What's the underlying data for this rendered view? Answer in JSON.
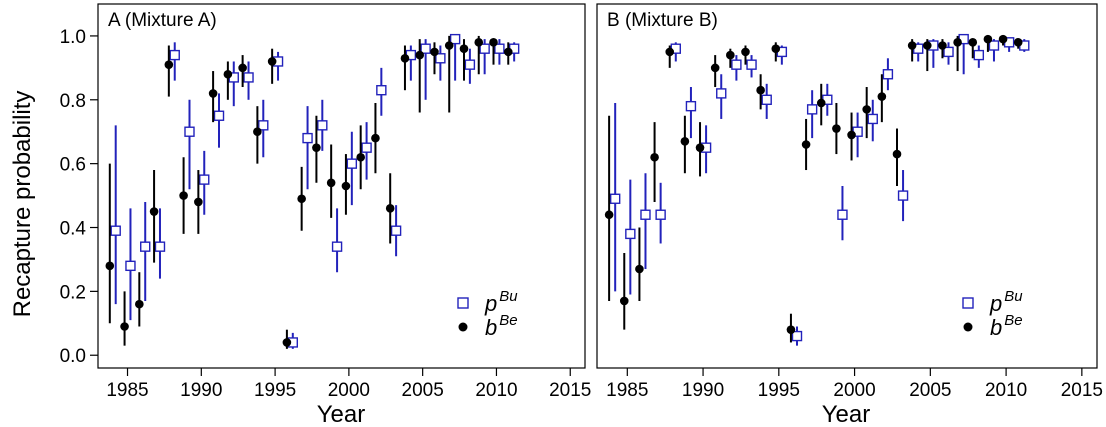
{
  "chart_data": [
    {
      "type": "scatter",
      "title": "A (Mixture A)",
      "xlabel": "Year",
      "ylabel": "Recapture probability",
      "xlim": [
        1983,
        2016
      ],
      "ylim": [
        -0.04,
        1.1
      ],
      "xticks": [
        1985,
        1990,
        1995,
        2000,
        2005,
        2010,
        2015
      ],
      "yticks": [
        "0.0",
        "0.2",
        "0.4",
        "0.6",
        "0.8",
        "1.0"
      ],
      "legend_position": "bottom-right",
      "series": [
        {
          "name": "p",
          "sup": "Bu",
          "marker": "open-square",
          "color": "#2222bb",
          "points": [
            {
              "x": 1984.2,
              "y": 0.39,
              "lo": 0.16,
              "hi": 0.72
            },
            {
              "x": 1985.2,
              "y": 0.28,
              "lo": 0.11,
              "hi": 0.46
            },
            {
              "x": 1986.2,
              "y": 0.34,
              "lo": 0.17,
              "hi": 0.48
            },
            {
              "x": 1987.2,
              "y": 0.34,
              "lo": 0.24,
              "hi": 0.46
            },
            {
              "x": 1988.2,
              "y": 0.94,
              "lo": 0.86,
              "hi": 0.98
            },
            {
              "x": 1989.2,
              "y": 0.7,
              "lo": 0.52,
              "hi": 0.8
            },
            {
              "x": 1990.2,
              "y": 0.55,
              "lo": 0.44,
              "hi": 0.64
            },
            {
              "x": 1991.2,
              "y": 0.75,
              "lo": 0.65,
              "hi": 0.82
            },
            {
              "x": 1992.2,
              "y": 0.87,
              "lo": 0.78,
              "hi": 0.92
            },
            {
              "x": 1993.2,
              "y": 0.87,
              "lo": 0.8,
              "hi": 0.92
            },
            {
              "x": 1994.2,
              "y": 0.72,
              "lo": 0.62,
              "hi": 0.8
            },
            {
              "x": 1995.2,
              "y": 0.92,
              "lo": 0.86,
              "hi": 0.95
            },
            {
              "x": 1996.2,
              "y": 0.04,
              "lo": 0.02,
              "hi": 0.07
            },
            {
              "x": 1997.2,
              "y": 0.68,
              "lo": 0.52,
              "hi": 0.78
            },
            {
              "x": 1998.2,
              "y": 0.72,
              "lo": 0.64,
              "hi": 0.8
            },
            {
              "x": 1999.2,
              "y": 0.34,
              "lo": 0.26,
              "hi": 0.46
            },
            {
              "x": 2000.2,
              "y": 0.6,
              "lo": 0.47,
              "hi": 0.7
            },
            {
              "x": 2001.2,
              "y": 0.65,
              "lo": 0.55,
              "hi": 0.73
            },
            {
              "x": 2002.2,
              "y": 0.83,
              "lo": 0.75,
              "hi": 0.9
            },
            {
              "x": 2003.2,
              "y": 0.39,
              "lo": 0.31,
              "hi": 0.47
            },
            {
              "x": 2004.2,
              "y": 0.94,
              "lo": 0.86,
              "hi": 0.97
            },
            {
              "x": 2005.2,
              "y": 0.96,
              "lo": 0.8,
              "hi": 0.99
            },
            {
              "x": 2006.2,
              "y": 0.93,
              "lo": 0.86,
              "hi": 0.97
            },
            {
              "x": 2007.2,
              "y": 0.99,
              "lo": 0.86,
              "hi": 1.0
            },
            {
              "x": 2008.2,
              "y": 0.91,
              "lo": 0.85,
              "hi": 0.96
            },
            {
              "x": 2009.2,
              "y": 0.96,
              "lo": 0.88,
              "hi": 0.99
            },
            {
              "x": 2010.2,
              "y": 0.96,
              "lo": 0.91,
              "hi": 0.99
            },
            {
              "x": 2011.2,
              "y": 0.96,
              "lo": 0.92,
              "hi": 0.98
            }
          ]
        },
        {
          "name": "b",
          "sup": "Be",
          "marker": "filled-circle",
          "color": "#000000",
          "points": [
            {
              "x": 1983.8,
              "y": 0.28,
              "lo": 0.1,
              "hi": 0.6
            },
            {
              "x": 1984.8,
              "y": 0.09,
              "lo": 0.03,
              "hi": 0.2
            },
            {
              "x": 1985.8,
              "y": 0.16,
              "lo": 0.09,
              "hi": 0.26
            },
            {
              "x": 1986.8,
              "y": 0.45,
              "lo": 0.29,
              "hi": 0.58
            },
            {
              "x": 1987.8,
              "y": 0.91,
              "lo": 0.81,
              "hi": 0.97
            },
            {
              "x": 1988.8,
              "y": 0.5,
              "lo": 0.38,
              "hi": 0.62
            },
            {
              "x": 1989.8,
              "y": 0.48,
              "lo": 0.38,
              "hi": 0.58
            },
            {
              "x": 1990.8,
              "y": 0.82,
              "lo": 0.73,
              "hi": 0.89
            },
            {
              "x": 1991.8,
              "y": 0.88,
              "lo": 0.8,
              "hi": 0.92
            },
            {
              "x": 1992.8,
              "y": 0.9,
              "lo": 0.84,
              "hi": 0.94
            },
            {
              "x": 1993.8,
              "y": 0.7,
              "lo": 0.6,
              "hi": 0.78
            },
            {
              "x": 1994.8,
              "y": 0.92,
              "lo": 0.85,
              "hi": 0.96
            },
            {
              "x": 1995.8,
              "y": 0.04,
              "lo": 0.02,
              "hi": 0.08
            },
            {
              "x": 1996.8,
              "y": 0.49,
              "lo": 0.39,
              "hi": 0.59
            },
            {
              "x": 1997.8,
              "y": 0.65,
              "lo": 0.54,
              "hi": 0.75
            },
            {
              "x": 1998.8,
              "y": 0.54,
              "lo": 0.43,
              "hi": 0.66
            },
            {
              "x": 1999.8,
              "y": 0.53,
              "lo": 0.44,
              "hi": 0.63
            },
            {
              "x": 2000.8,
              "y": 0.62,
              "lo": 0.52,
              "hi": 0.72
            },
            {
              "x": 2001.8,
              "y": 0.68,
              "lo": 0.57,
              "hi": 0.79
            },
            {
              "x": 2002.8,
              "y": 0.46,
              "lo": 0.35,
              "hi": 0.57
            },
            {
              "x": 2003.8,
              "y": 0.93,
              "lo": 0.83,
              "hi": 0.97
            },
            {
              "x": 2004.8,
              "y": 0.94,
              "lo": 0.76,
              "hi": 0.99
            },
            {
              "x": 2005.8,
              "y": 0.95,
              "lo": 0.88,
              "hi": 0.98
            },
            {
              "x": 2006.8,
              "y": 0.97,
              "lo": 0.76,
              "hi": 1.0
            },
            {
              "x": 2007.8,
              "y": 0.96,
              "lo": 0.86,
              "hi": 0.99
            },
            {
              "x": 2008.8,
              "y": 0.98,
              "lo": 0.88,
              "hi": 1.0
            },
            {
              "x": 2009.8,
              "y": 0.98,
              "lo": 0.91,
              "hi": 0.99
            },
            {
              "x": 2010.8,
              "y": 0.95,
              "lo": 0.91,
              "hi": 0.98
            }
          ]
        }
      ]
    },
    {
      "type": "scatter",
      "title": "B (Mixture B)",
      "xlabel": "Year",
      "ylabel": "",
      "xlim": [
        1983,
        2016
      ],
      "ylim": [
        -0.04,
        1.1
      ],
      "xticks": [
        1985,
        1990,
        1995,
        2000,
        2005,
        2010,
        2015
      ],
      "yticks": [],
      "legend_position": "bottom-right",
      "series": [
        {
          "name": "p",
          "sup": "Bu",
          "marker": "open-square",
          "color": "#2222bb",
          "points": [
            {
              "x": 1984.2,
              "y": 0.49,
              "lo": 0.2,
              "hi": 0.79
            },
            {
              "x": 1985.2,
              "y": 0.38,
              "lo": 0.19,
              "hi": 0.55
            },
            {
              "x": 1986.2,
              "y": 0.44,
              "lo": 0.27,
              "hi": 0.57
            },
            {
              "x": 1987.2,
              "y": 0.44,
              "lo": 0.35,
              "hi": 0.54
            },
            {
              "x": 1988.2,
              "y": 0.96,
              "lo": 0.92,
              "hi": 0.98
            },
            {
              "x": 1989.2,
              "y": 0.78,
              "lo": 0.68,
              "hi": 0.84
            },
            {
              "x": 1990.2,
              "y": 0.65,
              "lo": 0.57,
              "hi": 0.72
            },
            {
              "x": 1991.2,
              "y": 0.82,
              "lo": 0.74,
              "hi": 0.88
            },
            {
              "x": 1992.2,
              "y": 0.91,
              "lo": 0.86,
              "hi": 0.94
            },
            {
              "x": 1993.2,
              "y": 0.91,
              "lo": 0.87,
              "hi": 0.94
            },
            {
              "x": 1994.2,
              "y": 0.8,
              "lo": 0.74,
              "hi": 0.85
            },
            {
              "x": 1995.2,
              "y": 0.95,
              "lo": 0.91,
              "hi": 0.97
            },
            {
              "x": 1996.2,
              "y": 0.06,
              "lo": 0.03,
              "hi": 0.09
            },
            {
              "x": 1997.2,
              "y": 0.77,
              "lo": 0.68,
              "hi": 0.83
            },
            {
              "x": 1998.2,
              "y": 0.8,
              "lo": 0.75,
              "hi": 0.85
            },
            {
              "x": 1999.2,
              "y": 0.44,
              "lo": 0.36,
              "hi": 0.53
            },
            {
              "x": 2000.2,
              "y": 0.7,
              "lo": 0.62,
              "hi": 0.76
            },
            {
              "x": 2001.2,
              "y": 0.74,
              "lo": 0.67,
              "hi": 0.8
            },
            {
              "x": 2002.2,
              "y": 0.88,
              "lo": 0.83,
              "hi": 0.93
            },
            {
              "x": 2003.2,
              "y": 0.5,
              "lo": 0.42,
              "hi": 0.58
            },
            {
              "x": 2004.2,
              "y": 0.96,
              "lo": 0.92,
              "hi": 0.98
            },
            {
              "x": 2005.2,
              "y": 0.97,
              "lo": 0.9,
              "hi": 0.99
            },
            {
              "x": 2006.2,
              "y": 0.95,
              "lo": 0.91,
              "hi": 0.98
            },
            {
              "x": 2007.2,
              "y": 0.99,
              "lo": 0.88,
              "hi": 1.0
            },
            {
              "x": 2008.2,
              "y": 0.94,
              "lo": 0.9,
              "hi": 0.97
            },
            {
              "x": 2009.2,
              "y": 0.97,
              "lo": 0.92,
              "hi": 0.99
            },
            {
              "x": 2010.2,
              "y": 0.98,
              "lo": 0.95,
              "hi": 0.99
            },
            {
              "x": 2011.2,
              "y": 0.97,
              "lo": 0.95,
              "hi": 0.99
            }
          ]
        },
        {
          "name": "b",
          "sup": "Be",
          "marker": "filled-circle",
          "color": "#000000",
          "points": [
            {
              "x": 1983.8,
              "y": 0.44,
              "lo": 0.17,
              "hi": 0.75
            },
            {
              "x": 1984.8,
              "y": 0.17,
              "lo": 0.08,
              "hi": 0.32
            },
            {
              "x": 1985.8,
              "y": 0.27,
              "lo": 0.17,
              "hi": 0.4
            },
            {
              "x": 1986.8,
              "y": 0.62,
              "lo": 0.48,
              "hi": 0.73
            },
            {
              "x": 1987.8,
              "y": 0.95,
              "lo": 0.9,
              "hi": 0.97
            },
            {
              "x": 1988.8,
              "y": 0.67,
              "lo": 0.57,
              "hi": 0.75
            },
            {
              "x": 1989.8,
              "y": 0.65,
              "lo": 0.56,
              "hi": 0.73
            },
            {
              "x": 1990.8,
              "y": 0.9,
              "lo": 0.84,
              "hi": 0.94
            },
            {
              "x": 1991.8,
              "y": 0.94,
              "lo": 0.9,
              "hi": 0.96
            },
            {
              "x": 1992.8,
              "y": 0.95,
              "lo": 0.91,
              "hi": 0.97
            },
            {
              "x": 1993.8,
              "y": 0.83,
              "lo": 0.77,
              "hi": 0.88
            },
            {
              "x": 1994.8,
              "y": 0.96,
              "lo": 0.92,
              "hi": 0.98
            },
            {
              "x": 1995.8,
              "y": 0.08,
              "lo": 0.04,
              "hi": 0.13
            },
            {
              "x": 1996.8,
              "y": 0.66,
              "lo": 0.58,
              "hi": 0.74
            },
            {
              "x": 1997.8,
              "y": 0.79,
              "lo": 0.72,
              "hi": 0.85
            },
            {
              "x": 1998.8,
              "y": 0.71,
              "lo": 0.63,
              "hi": 0.79
            },
            {
              "x": 1999.8,
              "y": 0.69,
              "lo": 0.61,
              "hi": 0.76
            },
            {
              "x": 2000.8,
              "y": 0.77,
              "lo": 0.68,
              "hi": 0.84
            },
            {
              "x": 2001.8,
              "y": 0.81,
              "lo": 0.73,
              "hi": 0.88
            },
            {
              "x": 2002.8,
              "y": 0.63,
              "lo": 0.53,
              "hi": 0.71
            },
            {
              "x": 2003.8,
              "y": 0.97,
              "lo": 0.92,
              "hi": 0.99
            },
            {
              "x": 2004.8,
              "y": 0.97,
              "lo": 0.89,
              "hi": 0.99
            },
            {
              "x": 2005.8,
              "y": 0.97,
              "lo": 0.93,
              "hi": 0.99
            },
            {
              "x": 2006.8,
              "y": 0.98,
              "lo": 0.89,
              "hi": 1.0
            },
            {
              "x": 2007.8,
              "y": 0.98,
              "lo": 0.93,
              "hi": 0.99
            },
            {
              "x": 2008.8,
              "y": 0.99,
              "lo": 0.95,
              "hi": 1.0
            },
            {
              "x": 2009.8,
              "y": 0.99,
              "lo": 0.97,
              "hi": 1.0
            },
            {
              "x": 2010.8,
              "y": 0.98,
              "lo": 0.96,
              "hi": 0.99
            }
          ]
        }
      ]
    }
  ]
}
